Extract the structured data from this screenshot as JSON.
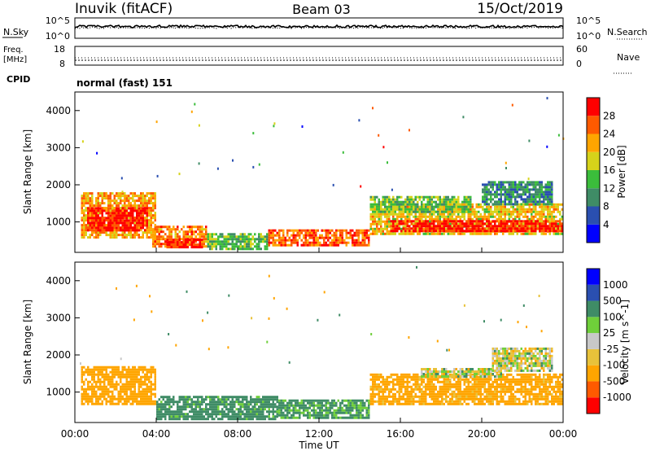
{
  "header": {
    "station": "Inuvik (fitACF)",
    "beam": "Beam 03",
    "date": "15/Oct/2019"
  },
  "strips": {
    "nsky_label": "N.Sky",
    "nsky_ticks": [
      "10^5",
      "10^0"
    ],
    "nsearch_label": "N.Search",
    "nsearch_ticks": [
      "10^5",
      "10^0"
    ],
    "freq_label_1": "Freq.",
    "freq_label_2": "[MHz]",
    "freq_ticks": [
      "18",
      "8"
    ],
    "nave_label": "Nave",
    "nave_ticks": [
      "60",
      "0"
    ],
    "cpid_label": "CPID",
    "cpid_text": "normal (fast) 151"
  },
  "chart_data": [
    {
      "type": "heatmap",
      "panel": "power",
      "ylabel": "Slant Range [km]",
      "yticks": [
        "4000",
        "3000",
        "2000",
        "1000"
      ],
      "colorbar_label": "Power [dB]",
      "colorbar_ticks": [
        "28",
        "24",
        "20",
        "16",
        "12",
        "8",
        "4"
      ],
      "colors": [
        "#0000ff",
        "#2a4fb0",
        "#3f8c66",
        "#3bbd3b",
        "#d6d31a",
        "#ffa500",
        "#ff5a00",
        "#ff0000"
      ],
      "regions": [
        {
          "x": [
            0.3,
            4.0
          ],
          "y": [
            600,
            1800
          ],
          "value": 22
        },
        {
          "x": [
            0.6,
            3.6
          ],
          "y": [
            800,
            1400
          ],
          "value": 30
        },
        {
          "x": [
            3.8,
            6.5
          ],
          "y": [
            350,
            900
          ],
          "value": 24
        },
        {
          "x": [
            4.5,
            6.2
          ],
          "y": [
            300,
            550
          ],
          "value": 30
        },
        {
          "x": [
            6.5,
            9.5
          ],
          "y": [
            300,
            700
          ],
          "value": 14
        },
        {
          "x": [
            9.5,
            14.5
          ],
          "y": [
            350,
            800
          ],
          "value": 26
        },
        {
          "x": [
            14.5,
            24.0
          ],
          "y": [
            700,
            1500
          ],
          "value": 20
        },
        {
          "x": [
            15.5,
            24.0
          ],
          "y": [
            750,
            1050
          ],
          "value": 30
        },
        {
          "x": [
            14.5,
            19.5
          ],
          "y": [
            1300,
            1700
          ],
          "value": 14
        },
        {
          "x": [
            20.0,
            23.5
          ],
          "y": [
            1500,
            2100
          ],
          "value": 10
        }
      ]
    },
    {
      "type": "heatmap",
      "panel": "velocity",
      "xlabel": "Time UT",
      "ylabel": "Slant Range [km]",
      "xticks": [
        "00:00",
        "04:00",
        "08:00",
        "12:00",
        "16:00",
        "20:00",
        "00:00"
      ],
      "yticks": [
        "4000",
        "3000",
        "2000",
        "1000"
      ],
      "colorbar_label": "Velocity [m s^-1]",
      "colorbar_ticks": [
        "1000",
        "500",
        "100",
        "25",
        "-25",
        "-100",
        "-500",
        "-1000"
      ],
      "colors": [
        "#ff0000",
        "#ff5a00",
        "#ffa500",
        "#e8c23a",
        "#c8c8c8",
        "#6fcf3a",
        "#3f8c66",
        "#2a4fb0",
        "#0000ff"
      ],
      "regions": [
        {
          "x": [
            0.3,
            4.0
          ],
          "y": [
            700,
            1700
          ],
          "value": -300
        },
        {
          "x": [
            4.0,
            10.0
          ],
          "y": [
            300,
            900
          ],
          "value": 200
        },
        {
          "x": [
            10.0,
            14.5
          ],
          "y": [
            300,
            800
          ],
          "value": 150
        },
        {
          "x": [
            14.5,
            24.0
          ],
          "y": [
            700,
            1500
          ],
          "value": -200
        },
        {
          "x": [
            17.0,
            21.0
          ],
          "y": [
            1400,
            1650
          ],
          "value": 0
        },
        {
          "x": [
            20.5,
            23.5
          ],
          "y": [
            1600,
            2200
          ],
          "value": 0
        }
      ]
    }
  ]
}
